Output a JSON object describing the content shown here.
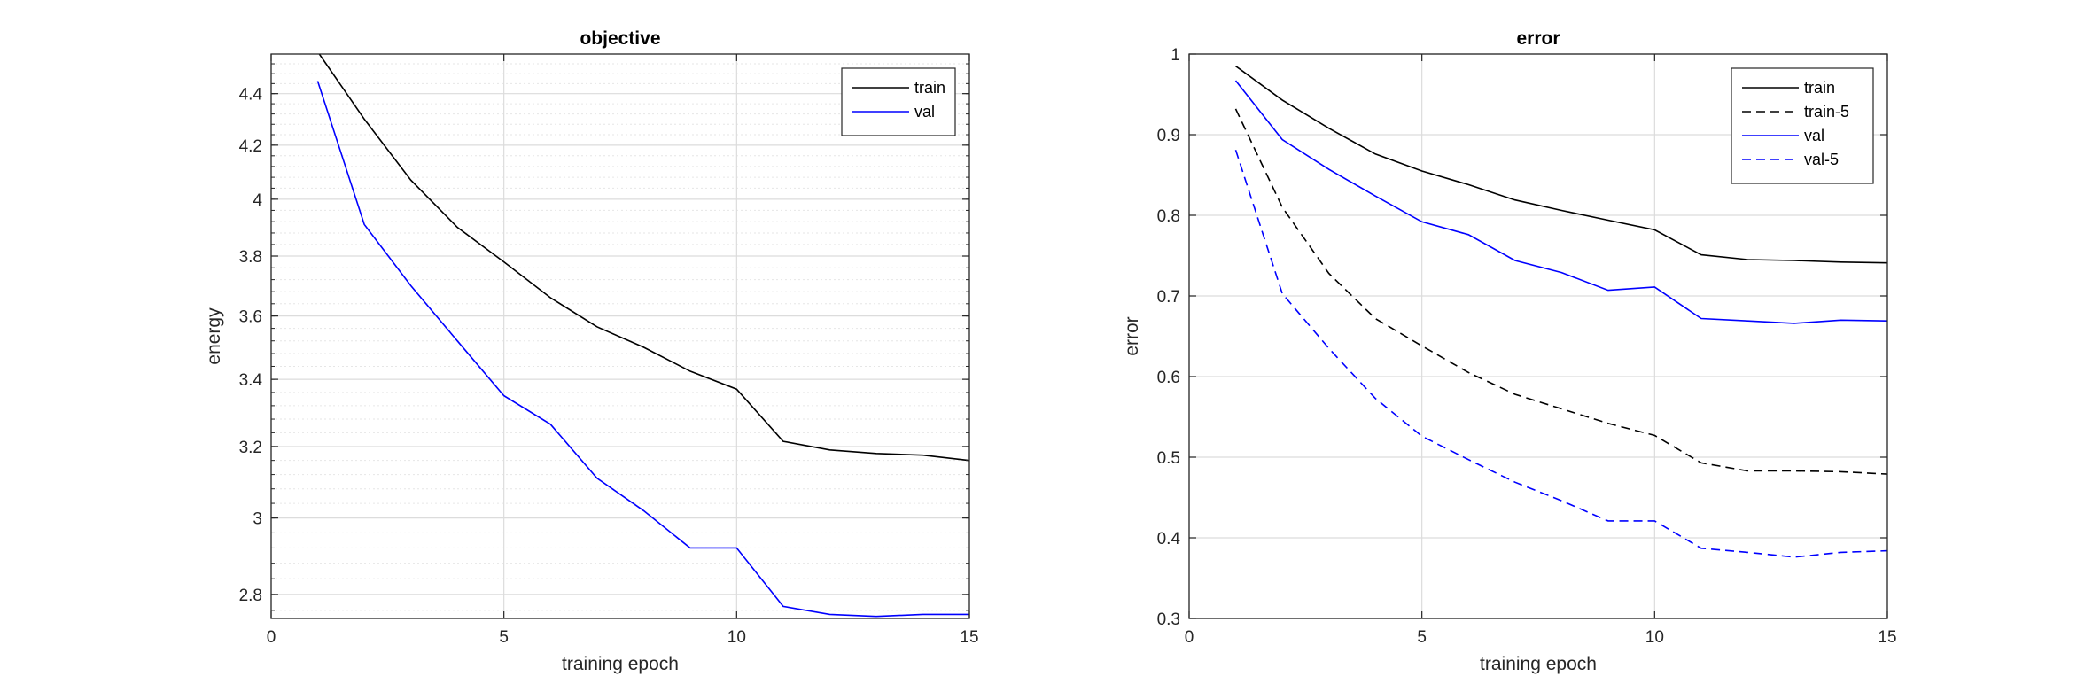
{
  "chart_data": [
    {
      "type": "line",
      "title": "objective",
      "xlabel": "training epoch",
      "ylabel": "energy",
      "yscale": "log",
      "xlim": [
        0,
        15
      ],
      "ylim": [
        2.74,
        4.56
      ],
      "xticks": [
        0,
        5,
        10,
        15
      ],
      "yticks": [
        2.8,
        3,
        3.2,
        3.4,
        3.6,
        3.8,
        4,
        4.2,
        4.4
      ],
      "ytick_labels": [
        "2.8",
        "3",
        "3.2",
        "3.4",
        "3.6",
        "3.8",
        "4",
        "4.2",
        "4.4"
      ],
      "grid": "on (major and minor)",
      "legend_location": "top-right",
      "x": [
        1,
        2,
        3,
        4,
        5,
        6,
        7,
        8,
        9,
        10,
        11,
        12,
        13,
        14,
        15
      ],
      "series": [
        {
          "name": "train",
          "color": "#000000",
          "style": "solid",
          "values": [
            4.57,
            4.3,
            4.07,
            3.9,
            3.78,
            3.66,
            3.565,
            3.5,
            3.425,
            3.37,
            3.215,
            3.19,
            3.18,
            3.175,
            3.16
          ]
        },
        {
          "name": "val",
          "color": "#0000ff",
          "style": "solid",
          "values": [
            4.45,
            3.91,
            3.7,
            3.52,
            3.35,
            3.265,
            3.11,
            3.02,
            2.92,
            2.92,
            2.77,
            2.75,
            2.745,
            2.75,
            2.75
          ]
        }
      ]
    },
    {
      "type": "line",
      "title": "error",
      "xlabel": "training epoch",
      "ylabel": "error",
      "yscale": "linear",
      "xlim": [
        0,
        15
      ],
      "ylim": [
        0.3,
        1
      ],
      "xticks": [
        0,
        5,
        10,
        15
      ],
      "yticks": [
        0.3,
        0.4,
        0.5,
        0.6,
        0.7,
        0.8,
        0.9,
        1
      ],
      "ytick_labels": [
        "0.3",
        "0.4",
        "0.5",
        "0.6",
        "0.7",
        "0.8",
        "0.9",
        "1"
      ],
      "grid": "on",
      "legend_location": "top-right",
      "x": [
        1,
        2,
        3,
        4,
        5,
        6,
        7,
        8,
        9,
        10,
        11,
        12,
        13,
        14,
        15
      ],
      "series": [
        {
          "name": "train",
          "color": "#000000",
          "style": "solid",
          "values": [
            0.985,
            0.943,
            0.908,
            0.876,
            0.855,
            0.838,
            0.819,
            0.806,
            0.794,
            0.782,
            0.751,
            0.745,
            0.744,
            0.742,
            0.741
          ]
        },
        {
          "name": "train-5",
          "color": "#000000",
          "style": "dashed",
          "values": [
            0.932,
            0.81,
            0.728,
            0.672,
            0.638,
            0.605,
            0.578,
            0.56,
            0.542,
            0.527,
            0.493,
            0.483,
            0.483,
            0.482,
            0.479
          ]
        },
        {
          "name": "val",
          "color": "#0000ff",
          "style": "solid",
          "values": [
            0.967,
            0.894,
            0.857,
            0.824,
            0.792,
            0.776,
            0.744,
            0.729,
            0.707,
            0.711,
            0.672,
            0.669,
            0.666,
            0.67,
            0.669
          ]
        },
        {
          "name": "val-5",
          "color": "#0000ff",
          "style": "dashed",
          "values": [
            0.881,
            0.703,
            0.635,
            0.573,
            0.526,
            0.497,
            0.469,
            0.446,
            0.421,
            0.421,
            0.387,
            0.382,
            0.376,
            0.382,
            0.384
          ]
        }
      ]
    }
  ]
}
